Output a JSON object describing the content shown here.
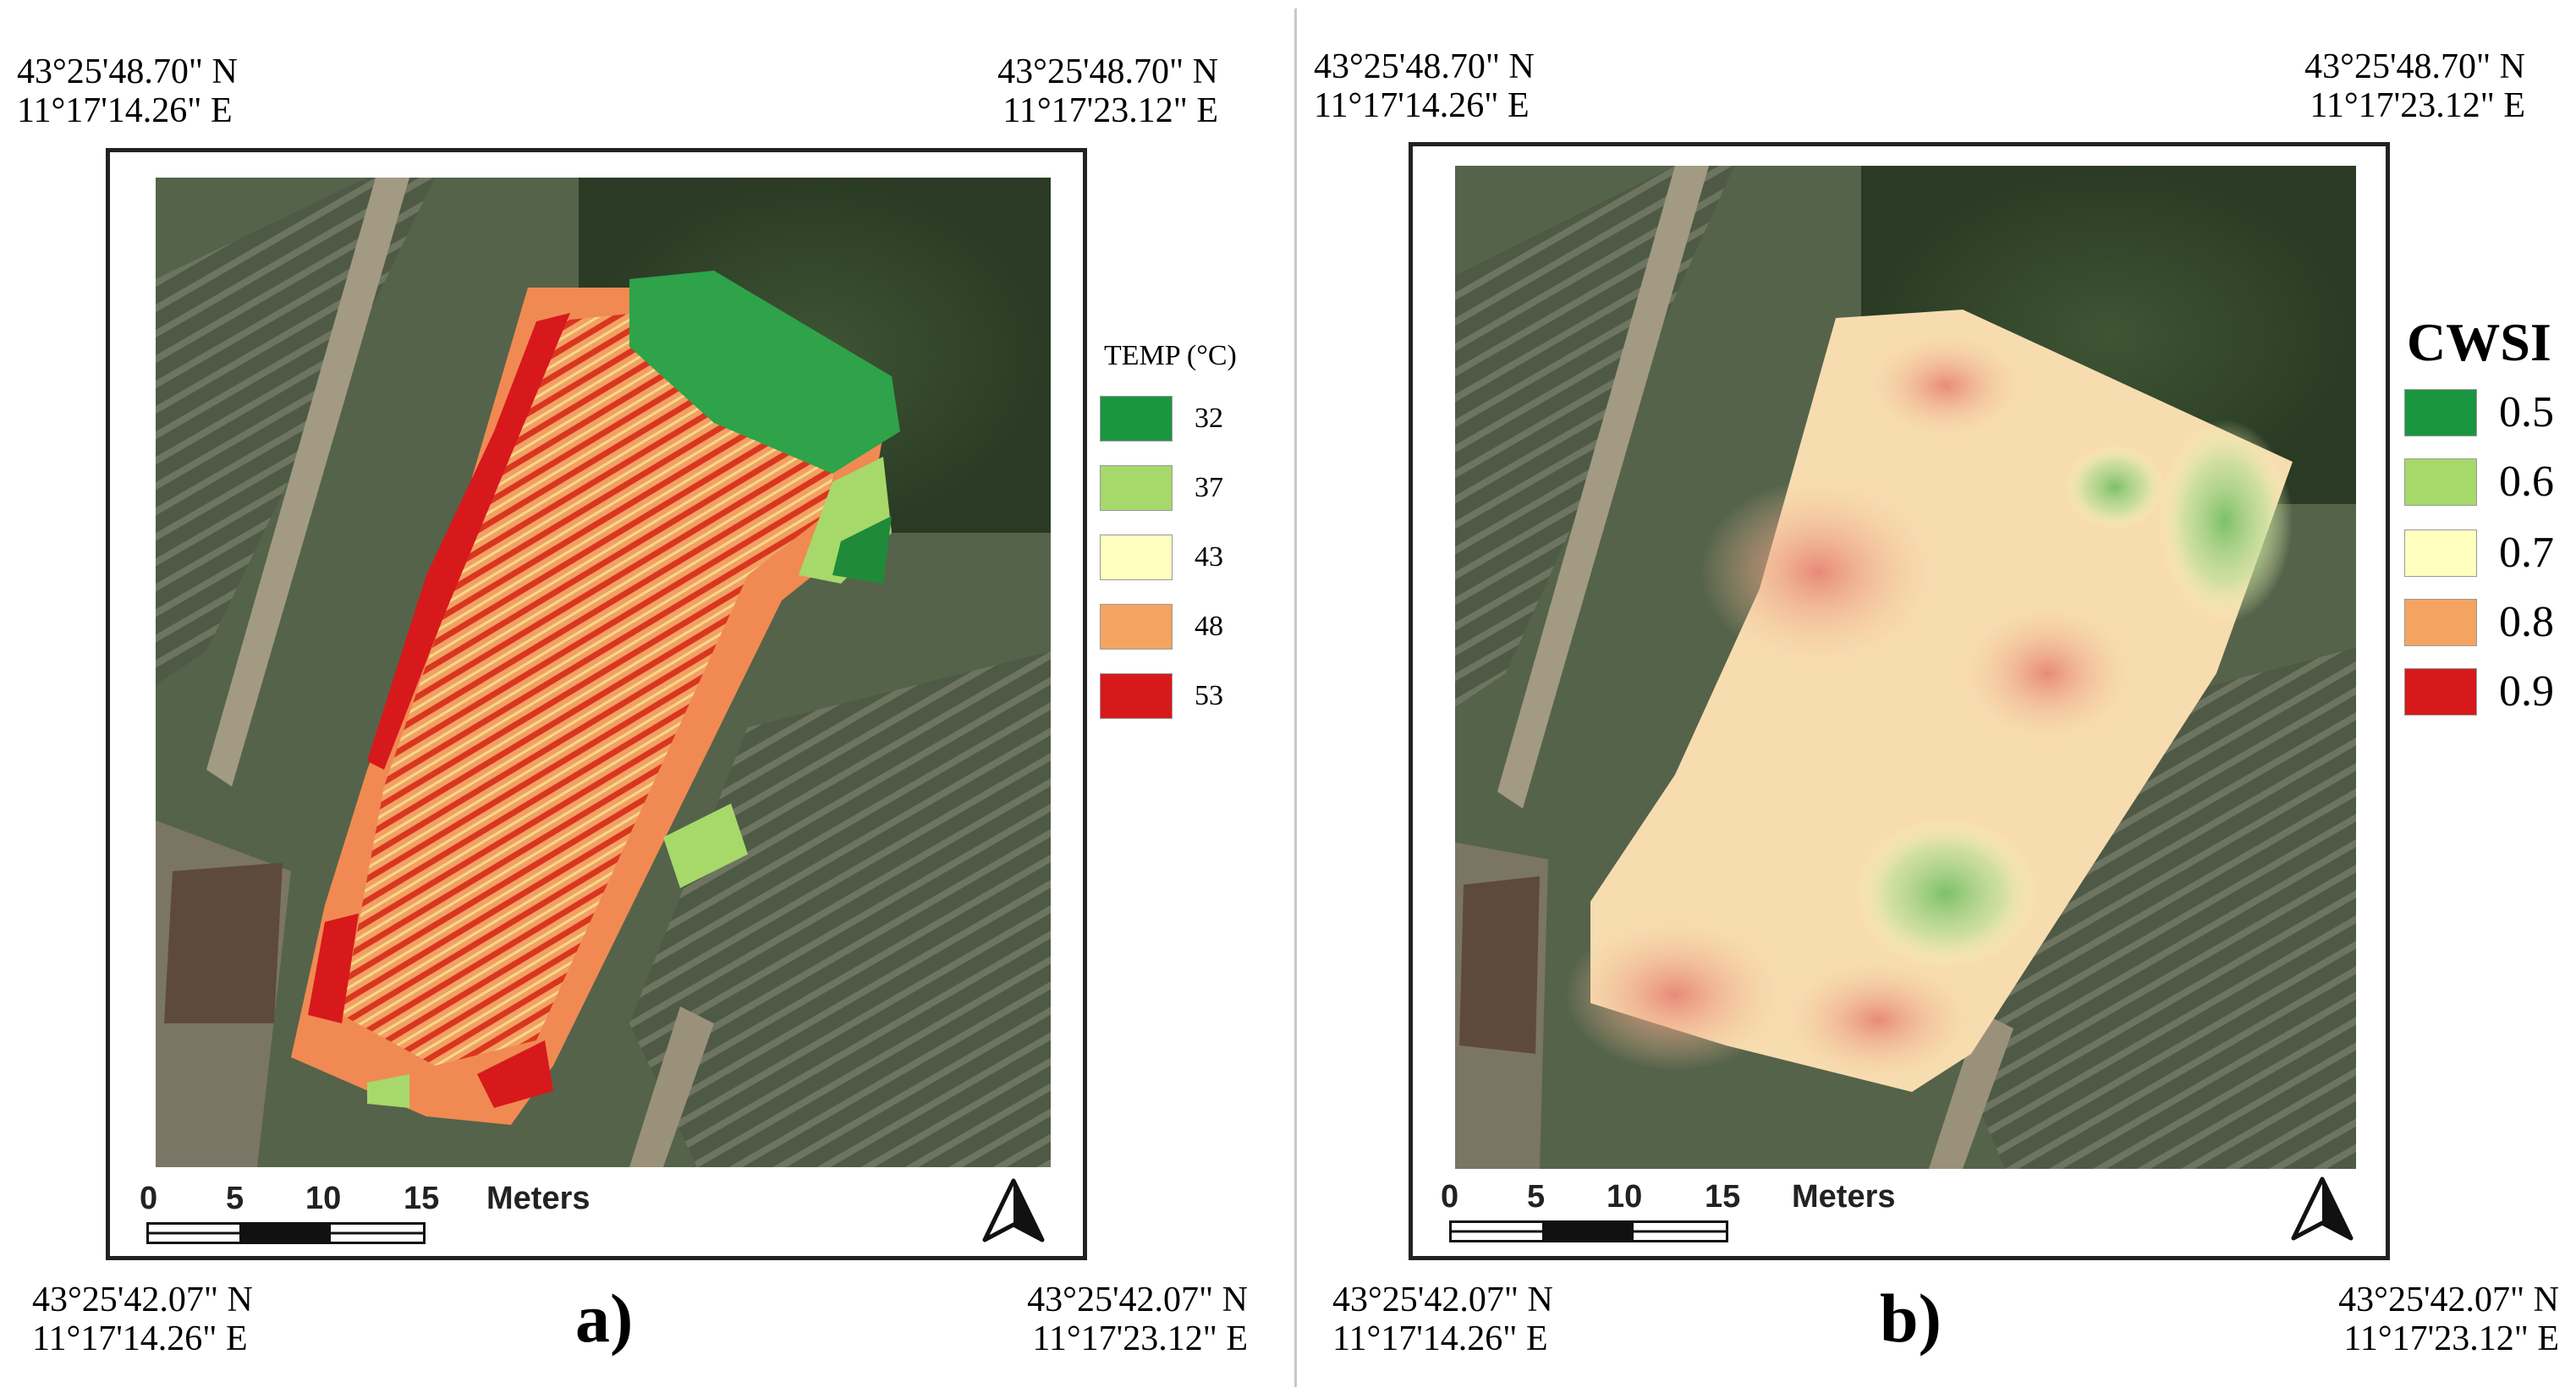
{
  "panels": [
    {
      "id": "a",
      "label": "a)",
      "corners": {
        "top_left": [
          "43°25'48.70\" N",
          "11°17'14.26\" E"
        ],
        "top_right": [
          "43°25'48.70\" N",
          "11°17'23.12\" E"
        ],
        "bottom_left": [
          "43°25'42.07\" N",
          "11°17'14.26\" E"
        ],
        "bottom_right": [
          "43°25'42.07\" N",
          "11°17'23.12\" E"
        ]
      },
      "legend": {
        "title": "TEMP (°C)",
        "items": [
          {
            "label": "32",
            "color": "#1a9641"
          },
          {
            "label": "37",
            "color": "#a6d96a"
          },
          {
            "label": "43",
            "color": "#ffffc0"
          },
          {
            "label": "48",
            "color": "#f4a460"
          },
          {
            "label": "53",
            "color": "#d7191c"
          }
        ]
      },
      "scale": {
        "ticks": [
          "0",
          "5",
          "10",
          "15"
        ],
        "unit": "Meters"
      }
    },
    {
      "id": "b",
      "label": "b)",
      "corners": {
        "top_left": [
          "43°25'48.70\" N",
          "11°17'14.26\" E"
        ],
        "top_right": [
          "43°25'48.70\" N",
          "11°17'23.12\" E"
        ],
        "bottom_left": [
          "43°25'42.07\" N",
          "11°17'14.26\" E"
        ],
        "bottom_right": [
          "43°25'42.07\" N",
          "11°17'23.12\" E"
        ]
      },
      "legend": {
        "title": "CWSI",
        "items": [
          {
            "label": "0.5",
            "color": "#1a9641"
          },
          {
            "label": "0.6",
            "color": "#a6d96a"
          },
          {
            "label": "0.7",
            "color": "#ffffc0"
          },
          {
            "label": "0.8",
            "color": "#f4a460"
          },
          {
            "label": "0.9",
            "color": "#d7191c"
          }
        ]
      },
      "scale": {
        "ticks": [
          "0",
          "5",
          "10",
          "15"
        ],
        "unit": "Meters"
      }
    }
  ]
}
